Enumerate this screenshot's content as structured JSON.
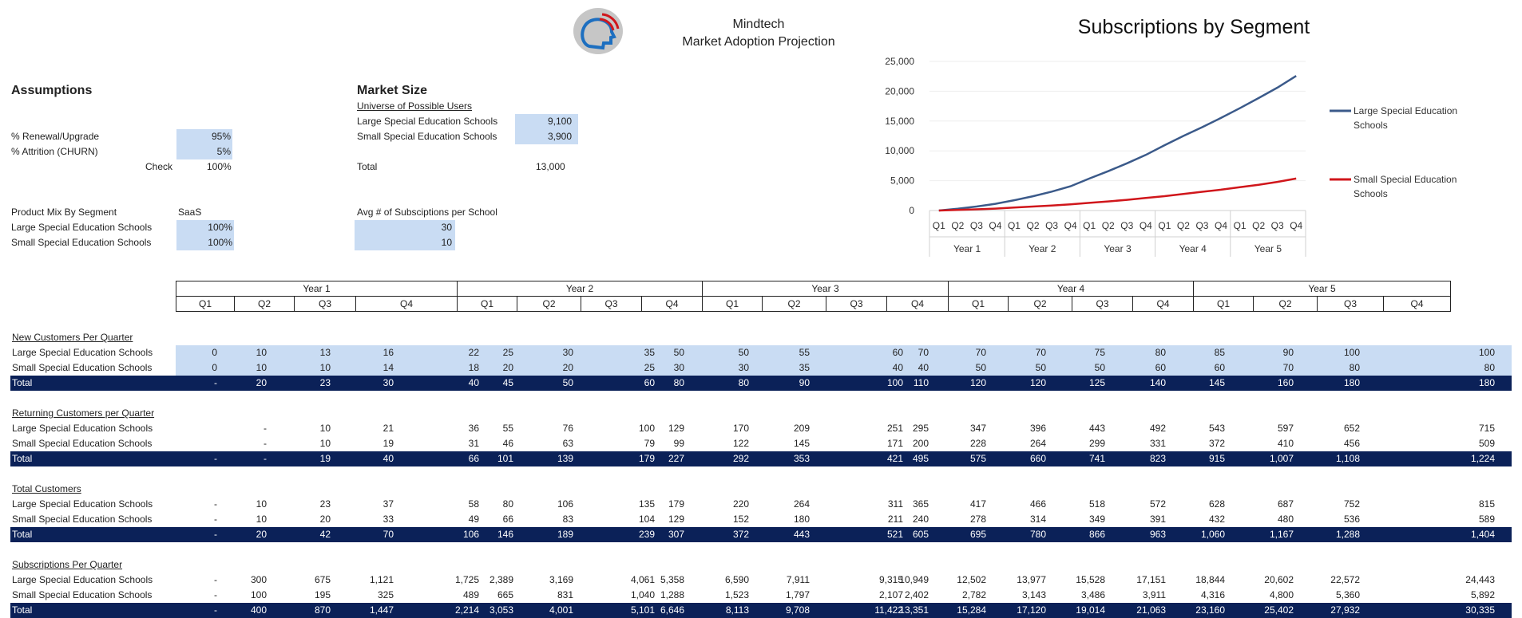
{
  "header": {
    "company": "Mindtech",
    "subtitle": "Market Adoption Projection",
    "logo_icon": "head-profile-icon"
  },
  "assumptions": {
    "title": "Assumptions",
    "renewal_label": "% Renewal/Upgrade",
    "renewal_value": "95%",
    "attrition_label": "% Attrition (CHURN)",
    "attrition_value": "5%",
    "check_label": "Check",
    "check_value": "100%",
    "product_mix_label": "Product Mix By Segment",
    "product_mix_header": "SaaS",
    "large_label": "Large Special Education Schools",
    "large_value": "100%",
    "small_label": "Small Special Education Schools",
    "small_value": "100%"
  },
  "market_size": {
    "title": "Market Size",
    "universe_label": "Universe of Possible Users",
    "large_label": "Large Special Education Schools",
    "large_value": "9,100",
    "small_label": "Small Special Education Schools",
    "small_value": "3,900",
    "total_label": "Total",
    "total_value": "13,000",
    "avg_label": "Avg # of Subsciptions per School",
    "avg_large": "30",
    "avg_small": "10"
  },
  "periods": {
    "years": [
      "Year 1",
      "Year 2",
      "Year 3",
      "Year 4",
      "Year 5"
    ],
    "quarters": [
      "Q1",
      "Q2",
      "Q3",
      "Q4"
    ]
  },
  "sections": [
    {
      "title": "New Customers Per Quarter",
      "input": true,
      "rows": [
        {
          "label": "Large Special Education Schools",
          "values": [
            "0",
            "10",
            "13",
            "16",
            "22",
            "25",
            "30",
            "35",
            "50",
            "50",
            "55",
            "60",
            "70",
            "70",
            "70",
            "75",
            "80",
            "85",
            "90",
            "100",
            "100"
          ]
        },
        {
          "label": "Small Special Education Schools",
          "values": [
            "0",
            "10",
            "10",
            "14",
            "18",
            "20",
            "20",
            "25",
            "30",
            "30",
            "35",
            "40",
            "40",
            "50",
            "50",
            "50",
            "60",
            "60",
            "70",
            "80",
            "80"
          ]
        }
      ],
      "total": {
        "label": "Total",
        "values": [
          "-",
          "20",
          "23",
          "30",
          "40",
          "45",
          "50",
          "60",
          "80",
          "80",
          "90",
          "100",
          "110",
          "120",
          "120",
          "125",
          "140",
          "145",
          "160",
          "180",
          "180"
        ]
      }
    },
    {
      "title": "Returning Customers per Quarter",
      "input": false,
      "rows": [
        {
          "label": "Large Special Education Schools",
          "values": [
            "",
            "-",
            "10",
            "21",
            "36",
            "55",
            "76",
            "100",
            "129",
            "170",
            "209",
            "251",
            "295",
            "347",
            "396",
            "443",
            "492",
            "543",
            "597",
            "652",
            "715"
          ]
        },
        {
          "label": "Small Special Education Schools",
          "values": [
            "",
            "-",
            "10",
            "19",
            "31",
            "46",
            "63",
            "79",
            "99",
            "122",
            "145",
            "171",
            "200",
            "228",
            "264",
            "299",
            "331",
            "372",
            "410",
            "456",
            "509"
          ]
        }
      ],
      "total": {
        "label": "Total",
        "values": [
          "-",
          "-",
          "19",
          "40",
          "66",
          "101",
          "139",
          "179",
          "227",
          "292",
          "353",
          "421",
          "495",
          "575",
          "660",
          "741",
          "823",
          "915",
          "1,007",
          "1,108",
          "1,224"
        ]
      }
    },
    {
      "title": "Total Customers",
      "input": false,
      "rows": [
        {
          "label": "Large Special Education Schools",
          "values": [
            "-",
            "10",
            "23",
            "37",
            "58",
            "80",
            "106",
            "135",
            "179",
            "220",
            "264",
            "311",
            "365",
            "417",
            "466",
            "518",
            "572",
            "628",
            "687",
            "752",
            "815"
          ]
        },
        {
          "label": "Small Special Education Schools",
          "values": [
            "-",
            "10",
            "20",
            "33",
            "49",
            "66",
            "83",
            "104",
            "129",
            "152",
            "180",
            "211",
            "240",
            "278",
            "314",
            "349",
            "391",
            "432",
            "480",
            "536",
            "589"
          ]
        }
      ],
      "total": {
        "label": "Total",
        "values": [
          "-",
          "20",
          "42",
          "70",
          "106",
          "146",
          "189",
          "239",
          "307",
          "372",
          "443",
          "521",
          "605",
          "695",
          "780",
          "866",
          "963",
          "1,060",
          "1,167",
          "1,288",
          "1,404"
        ]
      }
    },
    {
      "title": "Subscriptions Per Quarter",
      "input": false,
      "rows": [
        {
          "label": "Large Special Education Schools",
          "values": [
            "-",
            "300",
            "675",
            "1,121",
            "1,725",
            "2,389",
            "3,169",
            "4,061",
            "5,358",
            "6,590",
            "7,911",
            "9,315",
            "10,949",
            "12,502",
            "13,977",
            "15,528",
            "17,151",
            "18,844",
            "20,602",
            "22,572",
            "24,443"
          ]
        },
        {
          "label": "Small Special Education Schools",
          "values": [
            "-",
            "100",
            "195",
            "325",
            "489",
            "665",
            "831",
            "1,040",
            "1,288",
            "1,523",
            "1,797",
            "2,107",
            "2,402",
            "2,782",
            "3,143",
            "3,486",
            "3,911",
            "4,316",
            "4,800",
            "5,360",
            "5,892"
          ]
        }
      ],
      "total": {
        "label": "Total",
        "values": [
          "-",
          "400",
          "870",
          "1,447",
          "2,214",
          "3,053",
          "4,001",
          "5,101",
          "6,646",
          "8,113",
          "9,708",
          "11,422",
          "13,351",
          "15,284",
          "17,120",
          "19,014",
          "21,063",
          "23,160",
          "25,402",
          "27,932",
          "30,335"
        ]
      }
    }
  ],
  "chart_data": {
    "type": "line",
    "title": "Subscriptions by Segment",
    "ylim": [
      0,
      25000
    ],
    "yticks": [
      "0",
      "5,000",
      "10,000",
      "15,000",
      "20,000",
      "25,000"
    ],
    "ytick_values": [
      0,
      5000,
      10000,
      15000,
      20000,
      25000
    ],
    "quarters": [
      "Q1",
      "Q2",
      "Q3",
      "Q4",
      "Q1",
      "Q2",
      "Q3",
      "Q4",
      "Q1",
      "Q2",
      "Q3",
      "Q4",
      "Q1",
      "Q2",
      "Q3",
      "Q4",
      "Q1",
      "Q2",
      "Q3",
      "Q4"
    ],
    "years": [
      "Year 1",
      "Year 2",
      "Year 3",
      "Year 4",
      "Year 5"
    ],
    "legend_position": "right",
    "series": [
      {
        "name": "Large Special Education Schools",
        "color": "#3b5a8a",
        "values": [
          0,
          300,
          675,
          1121,
          1725,
          2389,
          3169,
          4061,
          5358,
          6590,
          7911,
          9315,
          10949,
          12502,
          13977,
          15528,
          17151,
          18844,
          20602,
          22572
        ]
      },
      {
        "name": "Small Special Education Schools",
        "color": "#d0161b",
        "values": [
          0,
          100,
          195,
          325,
          489,
          665,
          831,
          1040,
          1288,
          1523,
          1797,
          2107,
          2402,
          2782,
          3143,
          3486,
          3911,
          4316,
          4800,
          5360
        ]
      }
    ],
    "legend_labels": [
      [
        "Large Special Education",
        "Schools"
      ],
      [
        "Small Special Education",
        "Schools"
      ]
    ]
  }
}
